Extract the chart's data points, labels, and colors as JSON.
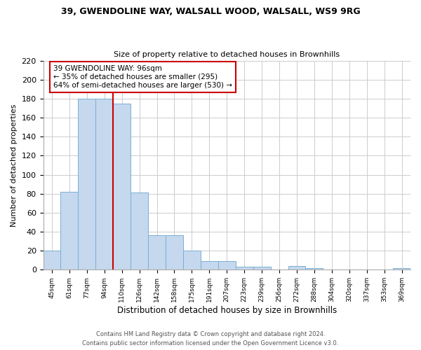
{
  "title_line1": "39, GWENDOLINE WAY, WALSALL WOOD, WALSALL, WS9 9RG",
  "title_line2": "Size of property relative to detached houses in Brownhills",
  "xlabel": "Distribution of detached houses by size in Brownhills",
  "ylabel": "Number of detached properties",
  "bar_labels": [
    "45sqm",
    "61sqm",
    "77sqm",
    "94sqm",
    "110sqm",
    "126sqm",
    "142sqm",
    "158sqm",
    "175sqm",
    "191sqm",
    "207sqm",
    "223sqm",
    "239sqm",
    "256sqm",
    "272sqm",
    "288sqm",
    "304sqm",
    "320sqm",
    "337sqm",
    "353sqm",
    "369sqm"
  ],
  "bar_heights": [
    20,
    82,
    180,
    180,
    175,
    81,
    36,
    36,
    20,
    9,
    9,
    3,
    3,
    0,
    4,
    2,
    0,
    0,
    0,
    0,
    2
  ],
  "bar_color": "#c5d8ee",
  "bar_edge_color": "#7aafd4",
  "vline_x_index": 3.5,
  "vline_color": "#cc0000",
  "annotation_text": "39 GWENDOLINE WAY: 96sqm\n← 35% of detached houses are smaller (295)\n64% of semi-detached houses are larger (530) →",
  "annotation_box_edge": "#cc0000",
  "ylim": [
    0,
    220
  ],
  "yticks": [
    0,
    20,
    40,
    60,
    80,
    100,
    120,
    140,
    160,
    180,
    200,
    220
  ],
  "footer_line1": "Contains HM Land Registry data © Crown copyright and database right 2024.",
  "footer_line2": "Contains public sector information licensed under the Open Government Licence v3.0.",
  "background_color": "#ffffff",
  "grid_color": "#cccccc"
}
